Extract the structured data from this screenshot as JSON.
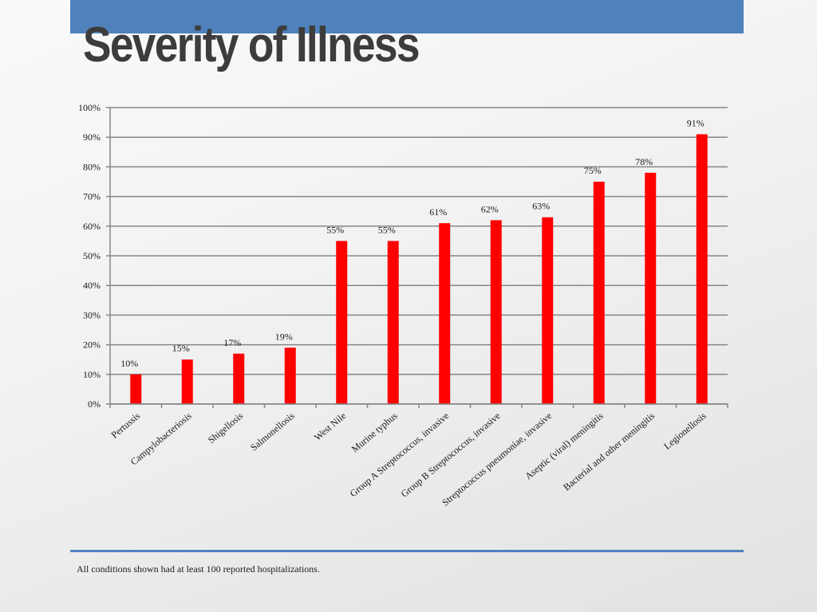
{
  "slide": {
    "title": "Severity of Illness",
    "footnote": "All conditions shown had at least 100 reported hospitalizations."
  },
  "colors": {
    "accent": "#4f81bd",
    "bar": "#ff0000",
    "grid": "#868686",
    "title": "#3c3c3c"
  },
  "chart_data": {
    "type": "bar",
    "categories": [
      "Pertussis",
      "Campylobacteriosis",
      "Shigellosis",
      "Salmonellosis",
      "West Nile",
      "Murine typhus",
      "Group A Streptococcus, invasive",
      "Group B Streptococcus, invasive",
      "Streptococcus pneumoniae, invasive",
      "Aseptic (viral) meningitis",
      "Bacterial and other meningitis",
      "Legionellosis"
    ],
    "values": [
      10,
      15,
      17,
      19,
      55,
      55,
      61,
      62,
      63,
      75,
      78,
      91
    ],
    "data_labels": [
      "10%",
      "15%",
      "17%",
      "19%",
      "55%",
      "55%",
      "61%",
      "62%",
      "63%",
      "75%",
      "78%",
      "91%"
    ],
    "yticks": [
      "0%",
      "10%",
      "20%",
      "30%",
      "40%",
      "50%",
      "60%",
      "70%",
      "80%",
      "90%",
      "100%"
    ],
    "ylim": [
      0,
      100
    ],
    "grid": true,
    "legend": "none"
  }
}
